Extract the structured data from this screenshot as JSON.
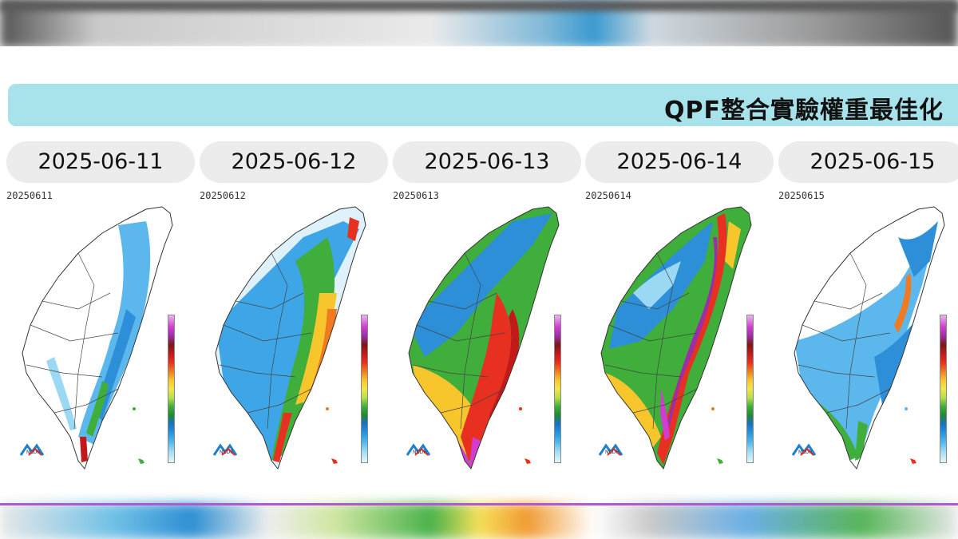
{
  "title": "QPF整合實驗權重最佳化",
  "panels": [
    {
      "date": "2025-06-11",
      "stamp": "20250611"
    },
    {
      "date": "2025-06-12",
      "stamp": "20250612"
    },
    {
      "date": "2025-06-13",
      "stamp": "20250613"
    },
    {
      "date": "2025-06-14",
      "stamp": "20250614"
    },
    {
      "date": "2025-06-15",
      "stamp": "20250615"
    }
  ],
  "logo_text": "NCDR",
  "precipitation_scale_colors": [
    "#e6f6fb",
    "#9bd8f4",
    "#4bb8ee",
    "#2496e0",
    "#1672c8",
    "#1f8a33",
    "#3fae3a",
    "#b6e04a",
    "#f2e64a",
    "#f7c52c",
    "#f07a20",
    "#e83020",
    "#c21a1a",
    "#7a1818",
    "#9e2ea8",
    "#d23cd0",
    "#e8b6ee"
  ],
  "map_fill_levels": [
    {
      "date": "2025-06-11",
      "level": "light (mostly white/blue, isolated red in far south)"
    },
    {
      "date": "2025-06-12",
      "level": "moderate (blue/green west, yellow-red east)"
    },
    {
      "date": "2025-06-13",
      "level": "heavy (green/yellow/red island-wide, purple south)"
    },
    {
      "date": "2025-06-14",
      "level": "heavy (red/purple central mountains)"
    },
    {
      "date": "2025-06-15",
      "level": "light (white/blue, some green south)"
    }
  ]
}
